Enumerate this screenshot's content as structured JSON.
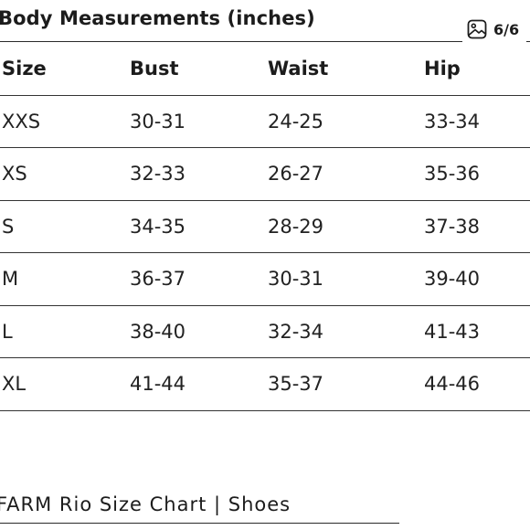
{
  "header": {
    "title": "Body Measurements (inches)",
    "counter": "6/6",
    "counter_icon": "image-gallery-icon"
  },
  "table": {
    "columns": [
      "Size",
      "Bust",
      "Waist",
      "Hip"
    ],
    "rows": [
      [
        "XXS",
        "30-31",
        "24-25",
        "33-34"
      ],
      [
        "XS",
        "32-33",
        "26-27",
        "35-36"
      ],
      [
        "S",
        "34-35",
        "28-29",
        "37-38"
      ],
      [
        "M",
        "36-37",
        "30-31",
        "39-40"
      ],
      [
        "L",
        "38-40",
        "32-34",
        "41-43"
      ],
      [
        "XL",
        "41-44",
        "35-37",
        "44-46"
      ]
    ]
  },
  "footer": {
    "caption": "FARM Rio Size Chart | Shoes"
  }
}
